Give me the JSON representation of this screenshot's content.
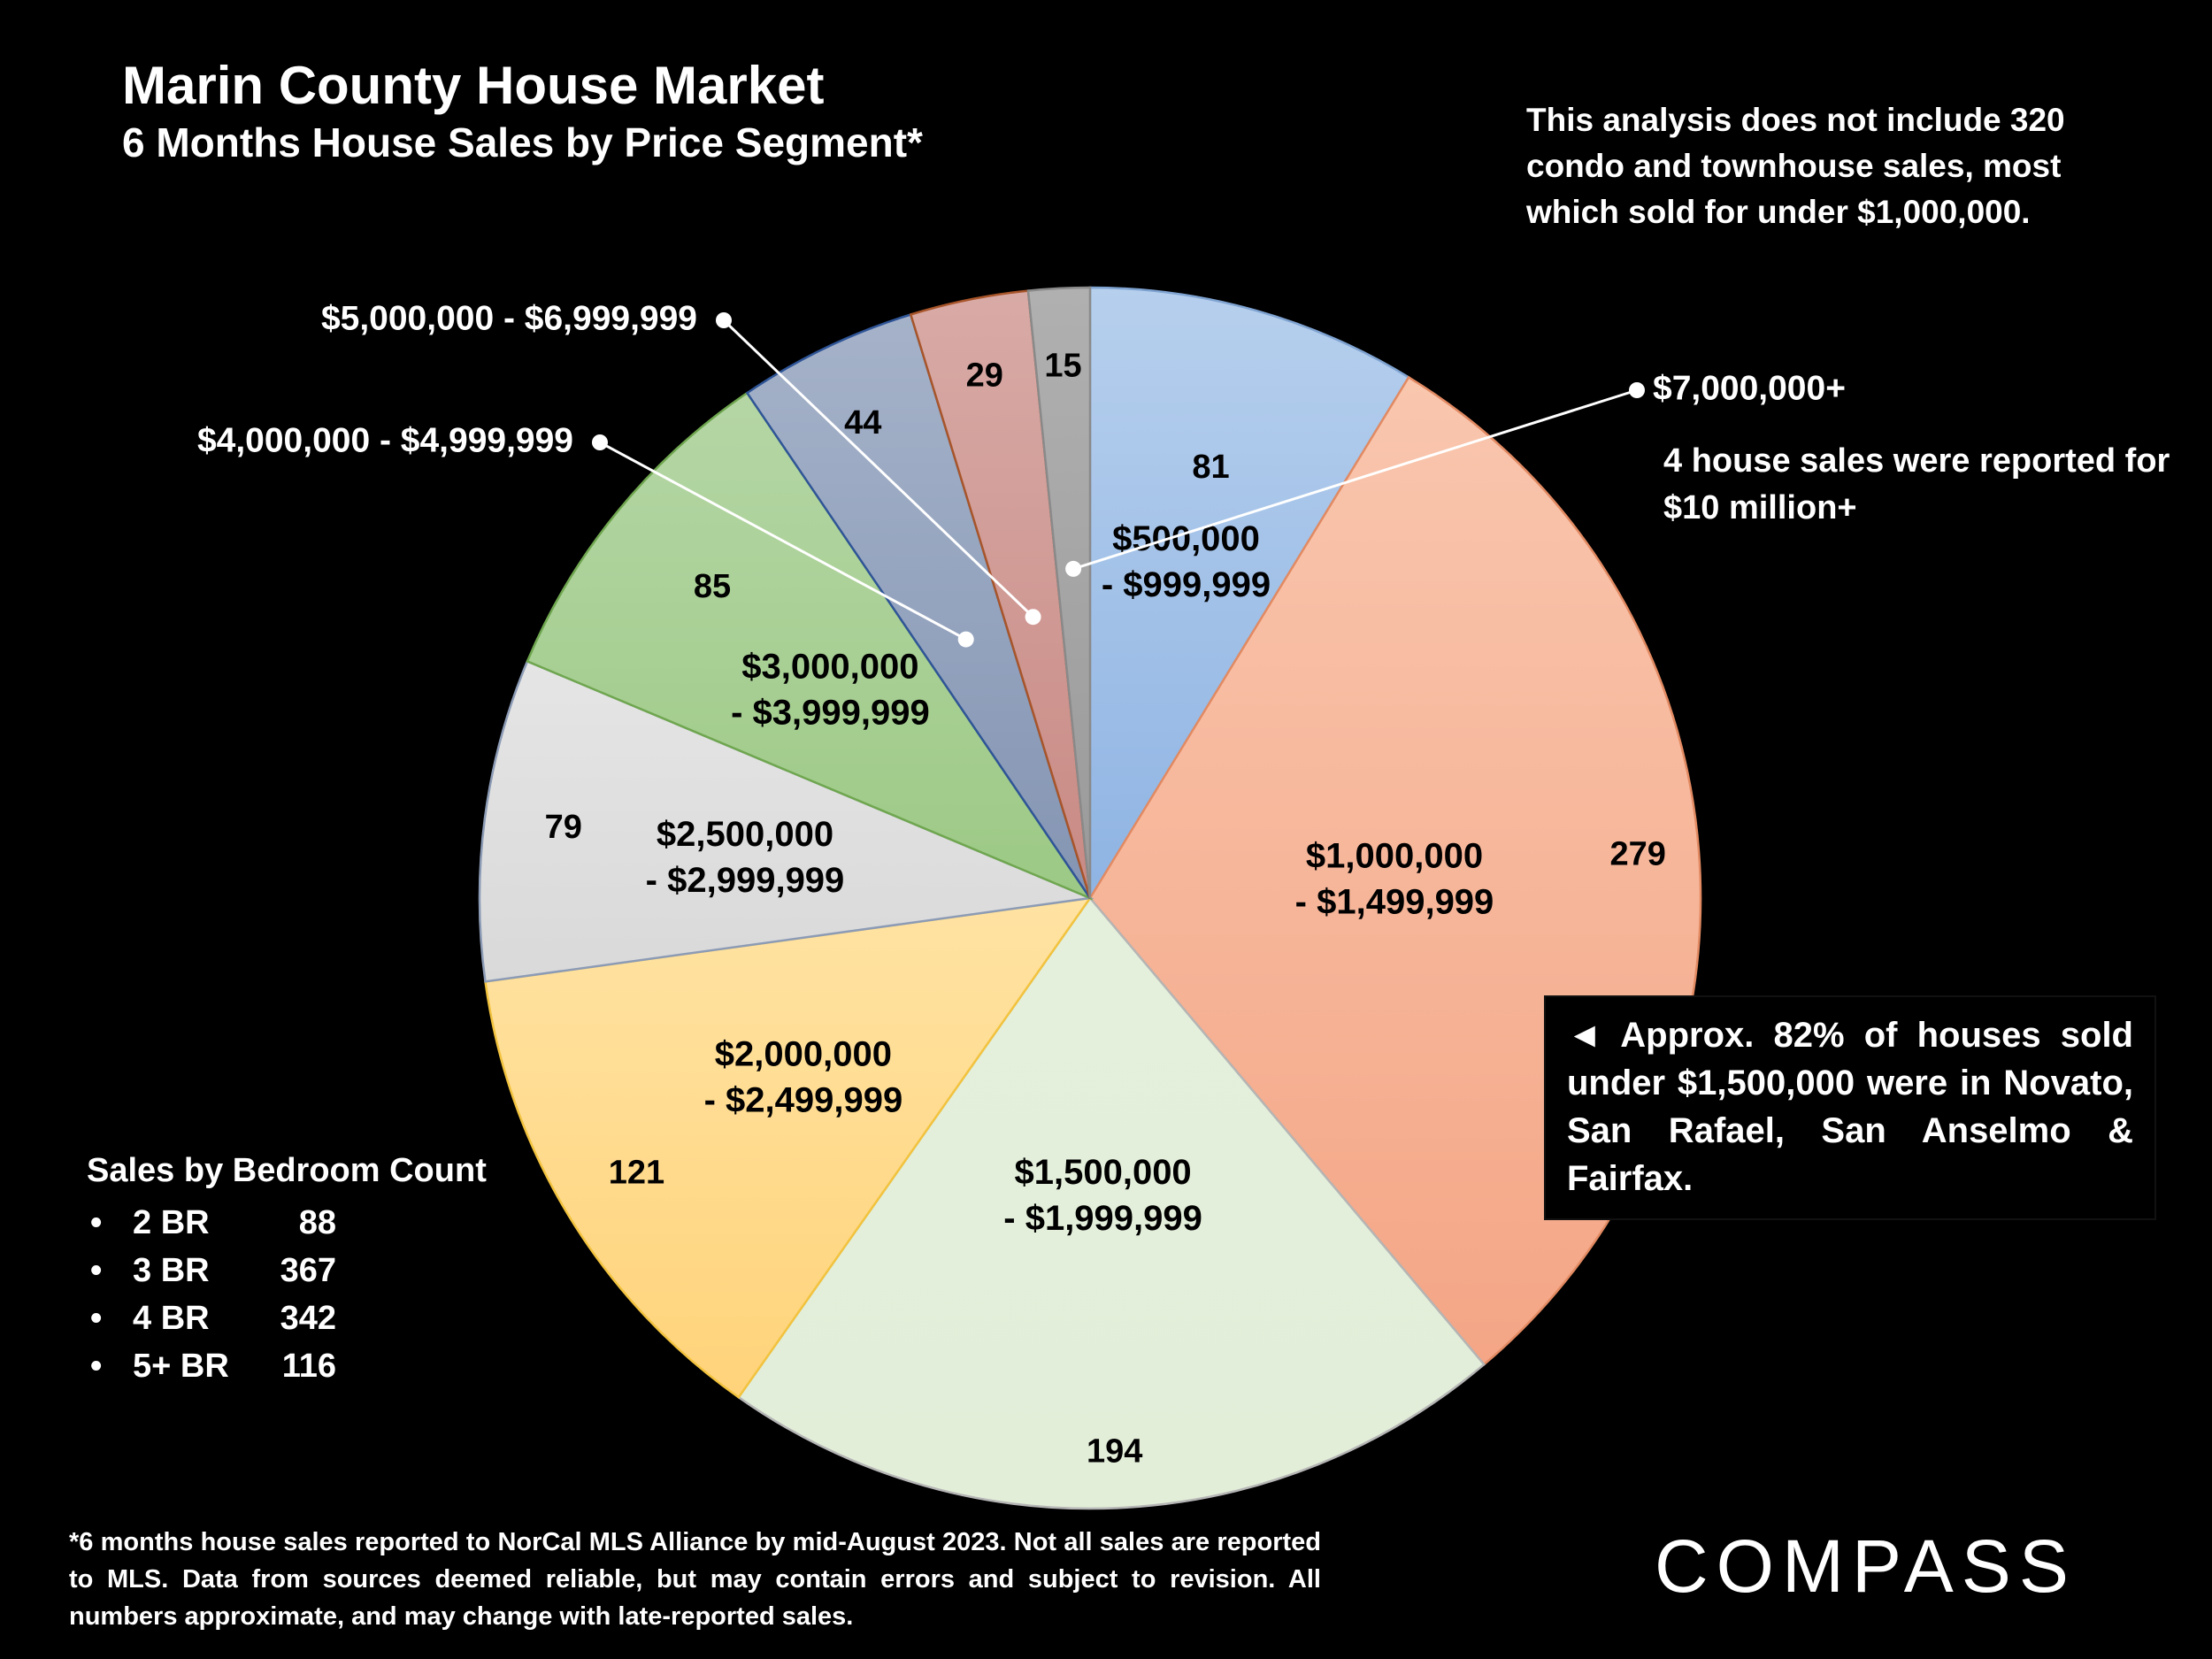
{
  "header": {
    "title": "Marin County House Market",
    "subtitle": "6 Months House Sales by Price Segment*"
  },
  "notes": {
    "excludes": "This analysis does not include 320 condo and townhouse sales, most which sold for under $1,000,000.",
    "ten_million": "4 house sales were reported for $10 million+",
    "callout": "◄ Approx. 82% of houses sold under $1,500,000 were in Novato, San Rafael, San Anselmo & Fairfax."
  },
  "bedroom": {
    "heading": "Sales by Bedroom Count",
    "rows": [
      {
        "label": "2 BR",
        "count": "88"
      },
      {
        "label": "3 BR",
        "count": "367"
      },
      {
        "label": "4 BR",
        "count": "342"
      },
      {
        "label": "5+ BR",
        "count": "116"
      }
    ]
  },
  "footnote": "*6 months house sales reported to NorCal MLS Alliance by mid-August 2023. Not all sales are reported to MLS. Data from sources deemed reliable, but may contain errors and subject to revision. All numbers approximate, and may change with late-reported sales.",
  "brand": "COMPASS",
  "chart_data": {
    "type": "pie",
    "title": "6 Months House Sales by Price Segment*",
    "categories": [
      "$500,000 - $999,999",
      "$1,000,000 - $1,499,999",
      "$1,500,000 - $1,999,999",
      "$2,000,000 - $2,499,999",
      "$2,500,000 - $2,999,999",
      "$3,000,000 - $3,999,999",
      "$4,000,000 - $4,999,999",
      "$5,000,000 - $6,999,999",
      "$7,000,000+"
    ],
    "values": [
      81,
      279,
      194,
      121,
      79,
      85,
      44,
      29,
      15
    ],
    "inside_labels": [
      [
        "$500,000",
        "- $999,999"
      ],
      [
        "$1,000,000",
        "- $1,499,999"
      ],
      [
        "$1,500,000",
        "- $1,999,999"
      ],
      [
        "$2,000,000",
        "- $2,499,999"
      ],
      [
        "$2,500,000",
        "- $2,999,999"
      ],
      [
        "$3,000,000",
        "- $3,999,999"
      ],
      [],
      [],
      []
    ],
    "external_labels": [
      "$4,000,000 - $4,999,999",
      "$5,000,000 - $6,999,999",
      "$7,000,000+"
    ],
    "colors": {
      "light": [
        "#b6cfed",
        "#f9c6ae",
        "#e4f0dc",
        "#ffe3a3",
        "#e5e5e5",
        "#b5d6a5",
        "#a5b2c9",
        "#d8aaa6",
        "#b0b0b0"
      ],
      "dark": [
        "#8fb4e3",
        "#f4a686",
        "#e2eed8",
        "#ffd37a",
        "#d9d9d9",
        "#9cc985",
        "#8495b3",
        "#c98a84",
        "#9a9a9a"
      ],
      "stroke": [
        "#7fa3d1",
        "#e28a62",
        "#b5b5b5",
        "#f2c33e",
        "#8c9bb5",
        "#6fa64f",
        "#2f5597",
        "#a8552a",
        "#8a8a8a"
      ]
    }
  }
}
